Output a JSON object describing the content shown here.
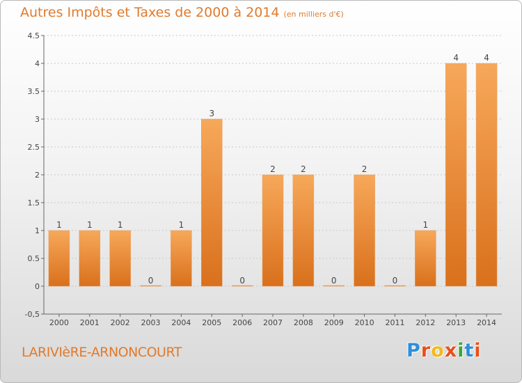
{
  "header": {
    "title": "Autres Impôts et Taxes de 2000 à 2014",
    "unit": "(en milliers d'€)"
  },
  "footer": {
    "commune": "LARIVIèRE-ARNONCOURT",
    "brand": [
      "P",
      "r",
      "o",
      "x",
      "i",
      "t",
      "i"
    ],
    "brand_colors": [
      "#2e8fd8",
      "#e8501a",
      "#f2b91e",
      "#e8501a",
      "#3aa63a",
      "#2e8fd8",
      "#e8501a"
    ]
  },
  "chart_data": {
    "type": "bar",
    "categories": [
      "2000",
      "2001",
      "2002",
      "2003",
      "2004",
      "2005",
      "2006",
      "2007",
      "2008",
      "2009",
      "2010",
      "2011",
      "2012",
      "2013",
      "2014"
    ],
    "values": [
      1,
      1,
      1,
      0,
      1,
      3,
      0,
      2,
      2,
      0,
      2,
      0,
      1,
      4,
      4
    ],
    "data_labels": [
      "1",
      "1",
      "1",
      "0",
      "1",
      "3",
      "0",
      "2",
      "2",
      "0",
      "2",
      "0",
      "1",
      "4",
      "4"
    ],
    "ylim": [
      -0.5,
      4.5
    ],
    "yticks": [
      -0.5,
      0,
      0.5,
      1,
      1.5,
      2,
      2.5,
      3,
      3.5,
      4,
      4.5
    ],
    "ytick_labels": [
      "-0,5",
      "0",
      "0.5",
      "1",
      "1.5",
      "2",
      "2.5",
      "3",
      "3.5",
      "4",
      "4.5"
    ],
    "grid": "horizontal-dashed",
    "bar_color": "#f0923a"
  }
}
